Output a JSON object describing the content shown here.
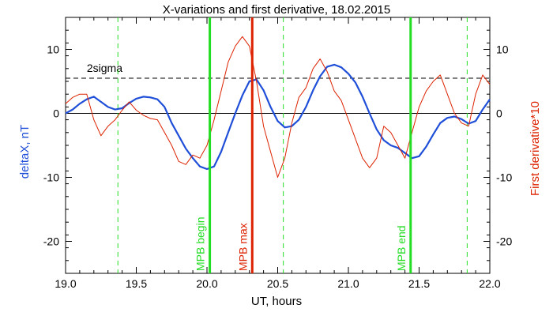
{
  "chart_data": {
    "type": "line",
    "title": "X-variations and first derivative, 18.02.2015",
    "xlabel": "UT, hours",
    "ylabel_left": "deltaX, nT",
    "ylabel_right": "First derivative*10",
    "xlim": [
      19.0,
      22.0
    ],
    "ylim": [
      -25,
      15
    ],
    "x_ticks": [
      "19.0",
      "19.5",
      "20.0",
      "20.5",
      "21.0",
      "21.5",
      "22.0"
    ],
    "y_ticks": [
      "10",
      "0",
      "-10",
      "-20"
    ],
    "grid": false,
    "threshold": {
      "label": "2sigma",
      "value": 5.5
    },
    "markers": [
      {
        "label": "MPB begin",
        "x": 20.02,
        "color": "#22dd22"
      },
      {
        "label": "MPB max",
        "x": 20.32,
        "color": "#dd2200"
      },
      {
        "label": "MPB end",
        "x": 21.44,
        "color": "#22dd22"
      }
    ],
    "dashed_markers": [
      19.37,
      20.54,
      21.84
    ],
    "series": [
      {
        "color": "#1f4fd8",
        "x": [
          19.0,
          19.05,
          19.1,
          19.15,
          19.2,
          19.25,
          19.3,
          19.35,
          19.4,
          19.45,
          19.5,
          19.55,
          19.6,
          19.65,
          19.7,
          19.75,
          19.8,
          19.85,
          19.9,
          19.95,
          20.0,
          20.05,
          20.1,
          20.15,
          20.2,
          20.25,
          20.3,
          20.35,
          20.4,
          20.45,
          20.5,
          20.55,
          20.6,
          20.65,
          20.7,
          20.75,
          20.8,
          20.85,
          20.9,
          20.95,
          21.0,
          21.05,
          21.1,
          21.15,
          21.2,
          21.25,
          21.3,
          21.35,
          21.4,
          21.45,
          21.5,
          21.55,
          21.6,
          21.65,
          21.7,
          21.75,
          21.8,
          21.85,
          21.9,
          21.95,
          22.0
        ],
        "values": [
          0,
          0.6,
          1.5,
          2.2,
          2.6,
          1.8,
          1.0,
          0.6,
          0.8,
          1.6,
          2.3,
          2.6,
          2.5,
          2.2,
          1.0,
          -1.5,
          -3.5,
          -5.5,
          -7.0,
          -8.3,
          -8.7,
          -8.3,
          -6.0,
          -3.0,
          0.0,
          2.8,
          5.0,
          5.3,
          3.6,
          1.0,
          -1.2,
          -2.2,
          -2.0,
          -1.0,
          1.0,
          3.6,
          5.8,
          7.3,
          7.6,
          7.2,
          6.2,
          4.8,
          2.6,
          0.0,
          -2.5,
          -4.2,
          -5.0,
          -5.4,
          -6.2,
          -7.0,
          -6.7,
          -5.2,
          -3.3,
          -1.5,
          -0.7,
          -0.5,
          -0.9,
          -1.6,
          -1.2,
          0.6,
          2.2
        ]
      },
      {
        "color": "#dd2200",
        "x": [
          19.0,
          19.05,
          19.1,
          19.15,
          19.2,
          19.25,
          19.3,
          19.35,
          19.4,
          19.45,
          19.5,
          19.55,
          19.6,
          19.65,
          19.7,
          19.75,
          19.8,
          19.85,
          19.9,
          19.95,
          20.0,
          20.05,
          20.1,
          20.15,
          20.2,
          20.25,
          20.3,
          20.35,
          20.4,
          20.45,
          20.5,
          20.55,
          20.6,
          20.65,
          20.7,
          20.75,
          20.8,
          20.85,
          20.9,
          20.95,
          21.0,
          21.05,
          21.1,
          21.15,
          21.2,
          21.25,
          21.3,
          21.35,
          21.4,
          21.45,
          21.5,
          21.55,
          21.6,
          21.65,
          21.7,
          21.75,
          21.8,
          21.85,
          21.9,
          21.95,
          22.0
        ],
        "values": [
          1.5,
          2.5,
          3.0,
          3.0,
          -1.0,
          -3.5,
          -2.0,
          -1.0,
          0.5,
          1.8,
          0.5,
          -0.3,
          -0.8,
          -1.0,
          -3.0,
          -5.0,
          -7.5,
          -8.0,
          -6.5,
          -7.0,
          -5.0,
          -1.0,
          3.5,
          8.0,
          10.5,
          12.0,
          10.5,
          5.0,
          -2.0,
          -6.0,
          -10.0,
          -7.0,
          -1.5,
          2.5,
          4.0,
          7.0,
          8.5,
          6.5,
          3.5,
          2.0,
          -1.0,
          -4.0,
          -7.0,
          -8.5,
          -7.0,
          -2.0,
          -3.0,
          -5.0,
          -7.0,
          -3.0,
          1.0,
          3.5,
          5.0,
          6.0,
          3.0,
          0.0,
          -1.5,
          -2.0,
          3.0,
          6.0,
          4.5
        ]
      }
    ]
  }
}
